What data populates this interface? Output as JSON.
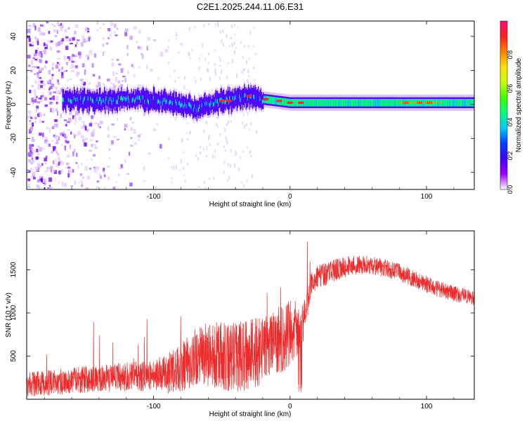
{
  "chart_data": [
    {
      "type": "heatmap",
      "title": "C2E1.2025.244.11.06.E31",
      "xlabel": "Height of straight line (km)",
      "ylabel": "Frequency (Hz)",
      "xlim": [
        -193,
        135
      ],
      "ylim": [
        -50,
        49
      ],
      "xticks": [
        -100,
        0,
        100
      ],
      "xtick_labels": [
        "-100",
        "0",
        "100"
      ],
      "yticks": [
        -40,
        -20,
        0,
        20,
        40
      ],
      "ytick_labels": [
        "-40",
        "-20",
        "0",
        "20",
        "40"
      ],
      "colorbar": {
        "label": "Normalized spectral amplitude",
        "range": [
          0,
          1
        ],
        "ticks": [
          0,
          0.2,
          0.4,
          0.6,
          0.8
        ],
        "tick_labels": [
          "0.0",
          "0.2",
          "0.4",
          "0.6",
          "0.8"
        ],
        "colors": [
          "#ffffff",
          "#a000ff",
          "#4000ff",
          "#0040ff",
          "#00c8ff",
          "#00ff80",
          "#40ff00",
          "#c8ff00",
          "#ffe000",
          "#ff8000",
          "#ff2020",
          "#ff1070"
        ]
      },
      "ridge": {
        "x": [
          -167,
          -140,
          -110,
          -95,
          -80,
          -68,
          -60,
          -50,
          -40,
          -30,
          -20,
          0,
          20,
          50,
          80,
          100,
          135
        ],
        "freq": [
          3,
          2,
          3,
          2,
          0,
          -3,
          0,
          2,
          3,
          5,
          3,
          1,
          1,
          1,
          1,
          1,
          1
        ]
      }
    },
    {
      "type": "line",
      "xlabel": "Height of straight line (km)",
      "ylabel": "SNR (10 * v/v)",
      "xlim": [
        -193,
        135
      ],
      "ylim": [
        0,
        1950
      ],
      "xticks": [
        -100,
        0,
        100
      ],
      "xtick_labels": [
        "-100",
        "0",
        "100"
      ],
      "yticks": [
        500,
        1000,
        1500
      ],
      "ytick_labels": [
        "500",
        "1000",
        "1500"
      ],
      "color": "#ee2a2a",
      "envelope": {
        "x": [
          -193,
          -170,
          -150,
          -120,
          -100,
          -90,
          -80,
          -70,
          -60,
          -50,
          -40,
          -20,
          -10,
          0,
          10,
          15,
          20,
          30,
          40,
          50,
          60,
          70,
          80,
          90,
          100,
          110,
          120,
          135
        ],
        "y": [
          170,
          200,
          230,
          260,
          280,
          300,
          380,
          480,
          520,
          500,
          480,
          560,
          650,
          750,
          900,
          1300,
          1420,
          1480,
          1530,
          1560,
          1550,
          1520,
          1470,
          1400,
          1330,
          1270,
          1220,
          1170
        ]
      },
      "noise_amplitude": {
        "x": [
          -193,
          -100,
          -70,
          -40,
          0,
          15,
          50,
          135
        ],
        "y": [
          140,
          180,
          350,
          420,
          400,
          150,
          110,
          90
        ]
      }
    }
  ]
}
